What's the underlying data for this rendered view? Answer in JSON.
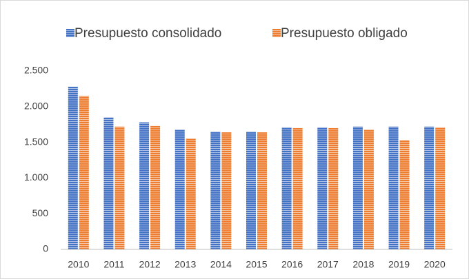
{
  "chart_data": {
    "type": "bar",
    "categories": [
      "2010",
      "2011",
      "2012",
      "2013",
      "2014",
      "2015",
      "2016",
      "2017",
      "2018",
      "2019",
      "2020"
    ],
    "series": [
      {
        "name": "Presupuesto consolidado",
        "color": "#4472c4",
        "values": [
          2280,
          1850,
          1780,
          1680,
          1650,
          1650,
          1710,
          1710,
          1720,
          1720,
          1720
        ]
      },
      {
        "name": "Presupuesto obligado",
        "color": "#ed7d31",
        "values": [
          2150,
          1720,
          1730,
          1550,
          1640,
          1640,
          1700,
          1700,
          1680,
          1530,
          1710
        ]
      }
    ],
    "ylim": [
      0,
      2500
    ],
    "yticks": [
      0,
      500,
      {
        "value": 1000,
        "label": "1.000"
      },
      {
        "value": 1500,
        "label": "1.500"
      },
      {
        "value": 2000,
        "label": "2.000"
      },
      {
        "value": 2500,
        "label": "2.500"
      }
    ],
    "grid": false,
    "legend": "top"
  }
}
